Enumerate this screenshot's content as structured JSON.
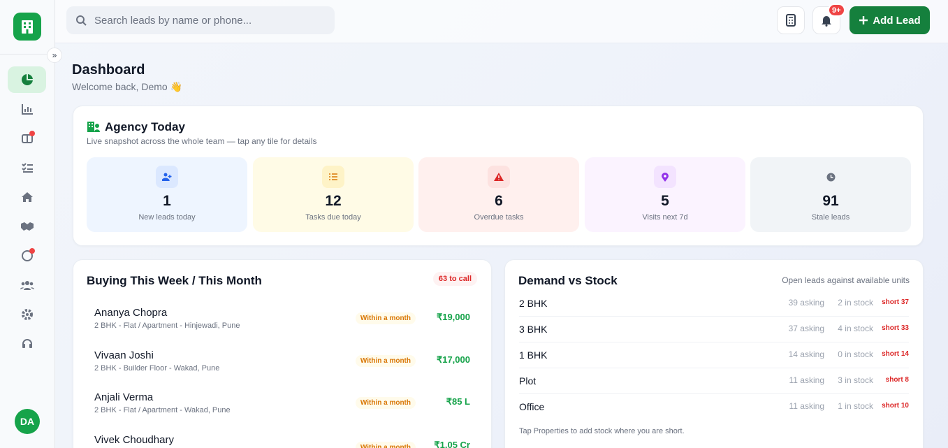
{
  "topbar": {
    "search_placeholder": "Search leads by name or phone...",
    "notification_badge": "9+",
    "add_lead": "Add Lead"
  },
  "sidebar": {
    "avatar": "DA"
  },
  "header": {
    "title": "Dashboard",
    "subtitle": "Welcome back, Demo 👋"
  },
  "agency": {
    "title": "Agency Today",
    "subtitle": "Live snapshot across the whole team — tap any tile for details",
    "tiles": [
      {
        "value": "1",
        "label": "New leads today"
      },
      {
        "value": "12",
        "label": "Tasks due today"
      },
      {
        "value": "6",
        "label": "Overdue tasks"
      },
      {
        "value": "5",
        "label": "Visits next 7d"
      },
      {
        "value": "91",
        "label": "Stale leads"
      }
    ]
  },
  "buying": {
    "title": "Buying This Week / This Month",
    "badge": "63 to call",
    "leads": [
      {
        "name": "Ananya Chopra",
        "details": "2 BHK - Flat / Apartment - Hinjewadi, Pune",
        "timeline": "Within a month",
        "budget": "₹19,000"
      },
      {
        "name": "Vivaan Joshi",
        "details": "2 BHK - Builder Floor - Wakad, Pune",
        "timeline": "Within a month",
        "budget": "₹17,000"
      },
      {
        "name": "Anjali Verma",
        "details": "2 BHK - Flat / Apartment - Wakad, Pune",
        "timeline": "Within a month",
        "budget": "₹85 L"
      },
      {
        "name": "Vivek Choudhary",
        "details": "",
        "timeline": "Within a month",
        "budget": "₹1.05 Cr"
      }
    ]
  },
  "demand": {
    "title": "Demand vs Stock",
    "subtitle": "Open leads against available units",
    "rows": [
      {
        "type": "2 BHK",
        "asking": "39 asking",
        "stock": "2 in stock",
        "short": "short 37"
      },
      {
        "type": "3 BHK",
        "asking": "37 asking",
        "stock": "4 in stock",
        "short": "short 33"
      },
      {
        "type": "1 BHK",
        "asking": "14 asking",
        "stock": "0 in stock",
        "short": "short 14"
      },
      {
        "type": "Plot",
        "asking": "11 asking",
        "stock": "3 in stock",
        "short": "short 8"
      },
      {
        "type": "Office",
        "asking": "11 asking",
        "stock": "1 in stock",
        "short": "short 10"
      }
    ],
    "footer": "Tap Properties to add stock where you are short."
  }
}
